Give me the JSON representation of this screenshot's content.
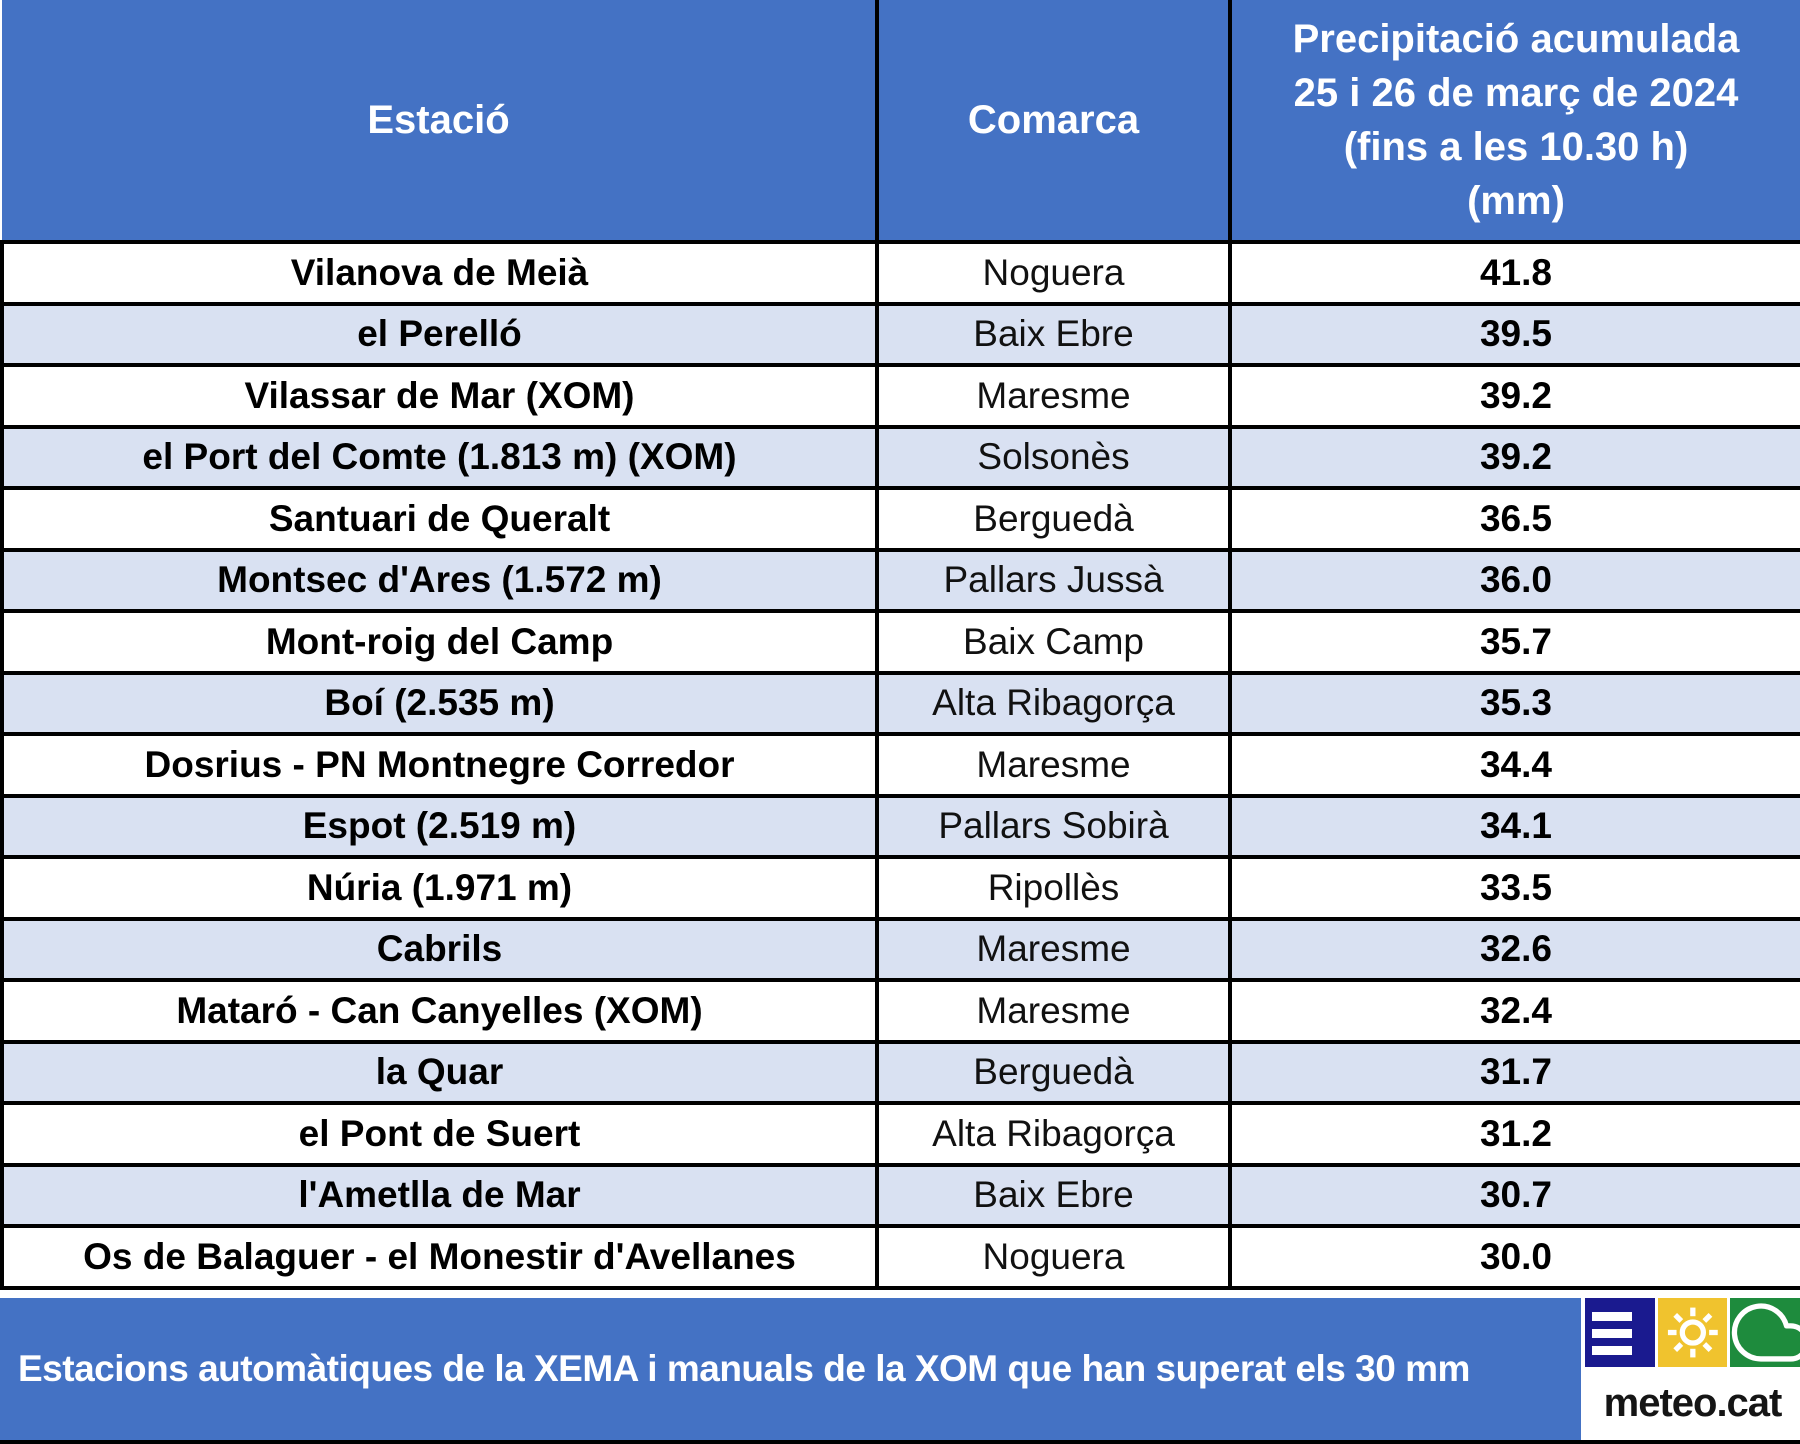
{
  "chart_data": {
    "type": "table",
    "title": "",
    "columns": [
      "Estació",
      "Comarca",
      "Precipitació acumulada 25 i 26 de març de 2024 (fins a les 10.30 h) (mm)"
    ],
    "rows": [
      [
        "Vilanova de Meià",
        "Noguera",
        "41.8"
      ],
      [
        "el Perelló",
        "Baix Ebre",
        "39.5"
      ],
      [
        "Vilassar de Mar (XOM)",
        "Maresme",
        "39.2"
      ],
      [
        "el Port del Comte (1.813 m) (XOM)",
        "Solsonès",
        "39.2"
      ],
      [
        "Santuari de Queralt",
        "Berguedà",
        "36.5"
      ],
      [
        "Montsec d'Ares (1.572 m)",
        "Pallars Jussà",
        "36.0"
      ],
      [
        "Mont-roig del Camp",
        "Baix Camp",
        "35.7"
      ],
      [
        "Boí (2.535 m)",
        "Alta Ribagorça",
        "35.3"
      ],
      [
        "Dosrius - PN Montnegre Corredor",
        "Maresme",
        "34.4"
      ],
      [
        "Espot (2.519 m)",
        "Pallars Sobirà",
        "34.1"
      ],
      [
        "Núria (1.971 m)",
        "Ripollès",
        "33.5"
      ],
      [
        "Cabrils",
        "Maresme",
        "32.6"
      ],
      [
        "Mataró - Can Canyelles (XOM)",
        "Maresme",
        "32.4"
      ],
      [
        "la Quar",
        "Berguedà",
        "31.7"
      ],
      [
        "el Pont de Suert",
        "Alta Ribagorça",
        "31.2"
      ],
      [
        "l'Ametlla de Mar",
        "Baix Ebre",
        "30.7"
      ],
      [
        "Os de Balaguer - el Monestir d'Avellanes",
        "Noguera",
        "30.0"
      ]
    ]
  },
  "header": {
    "precip_lines": [
      "Precipitació acumulada",
      "25 i 26 de març de 2024",
      "(fins a les 10.30 h)",
      "(mm)"
    ]
  },
  "footer": {
    "caption": "Estacions automàtiques de la XEMA i manuals de la XOM que han superat els 30 mm"
  },
  "logo": {
    "text": "meteo.cat",
    "icons": [
      "menu-bars-icon",
      "sun-icon",
      "cloud-icon"
    ]
  },
  "colors": {
    "header_blue": "#4472C4",
    "row_alt_blue": "#D9E1F2",
    "border_black": "#000000",
    "header_text": "#FFFFFF",
    "body_text": "#000000",
    "logo_navy": "#1A1A8F",
    "logo_yellow": "#F0C32E",
    "logo_green": "#1E8B3D"
  }
}
